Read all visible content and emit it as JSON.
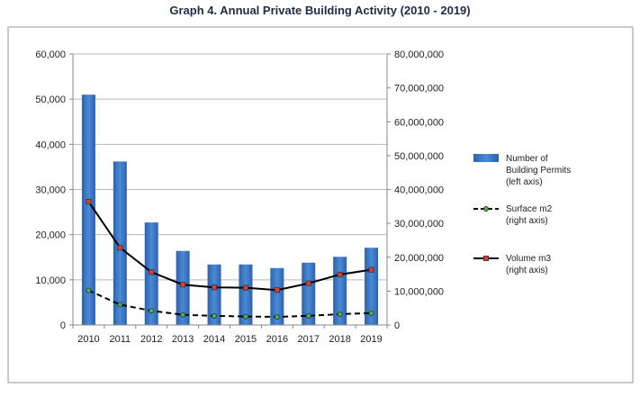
{
  "chart_data": {
    "type": "bar",
    "title": "Graph 4. Annual Private Building Activity (2010 - 2019)",
    "categories": [
      "2010",
      "2011",
      "2012",
      "2013",
      "2014",
      "2015",
      "2016",
      "2017",
      "2018",
      "2019"
    ],
    "left_axis": {
      "ylim": [
        0,
        60000
      ],
      "ticks": [
        0,
        10000,
        20000,
        30000,
        40000,
        50000,
        60000
      ],
      "tick_labels": [
        "0",
        "10,000",
        "20,000",
        "30,000",
        "40,000",
        "50,000",
        "60,000"
      ]
    },
    "right_axis": {
      "ylim": [
        0,
        80000000
      ],
      "ticks": [
        0,
        10000000,
        20000000,
        30000000,
        40000000,
        50000000,
        60000000,
        70000000,
        80000000
      ],
      "tick_labels": [
        "0",
        "10,000,000",
        "20,000,000",
        "30,000,000",
        "40,000,000",
        "50,000,000",
        "60,000,000",
        "70,000,000",
        "80,000,000"
      ]
    },
    "grid": true,
    "legend_position": "right",
    "series": [
      {
        "name": "Number of Building Permits (left axis)",
        "legend_lines": [
          "Number of",
          "Building Permits",
          "(left axis)"
        ],
        "kind": "bar",
        "axis": "left",
        "color": "#3b78c8",
        "values": [
          51000,
          36200,
          22700,
          16400,
          13400,
          13400,
          12600,
          13800,
          15100,
          17100
        ]
      },
      {
        "name": "Surface m2 (right axis)",
        "legend_lines": [
          "Surface m2",
          "(right axis)"
        ],
        "kind": "line",
        "axis": "right",
        "line_style": "dashed",
        "color": "#000000",
        "marker_color": "#4caf50",
        "values": [
          10200000,
          6000000,
          4200000,
          3000000,
          2700000,
          2500000,
          2400000,
          2700000,
          3200000,
          3500000
        ]
      },
      {
        "name": "Volume m3 (right axis)",
        "legend_lines": [
          "Volume m3",
          "(right axis)"
        ],
        "kind": "line",
        "axis": "right",
        "line_style": "solid",
        "color": "#000000",
        "marker_color": "#e53935",
        "values": [
          36400000,
          22800000,
          15600000,
          11900000,
          11100000,
          11000000,
          10300000,
          12300000,
          14900000,
          16300000
        ]
      }
    ]
  }
}
